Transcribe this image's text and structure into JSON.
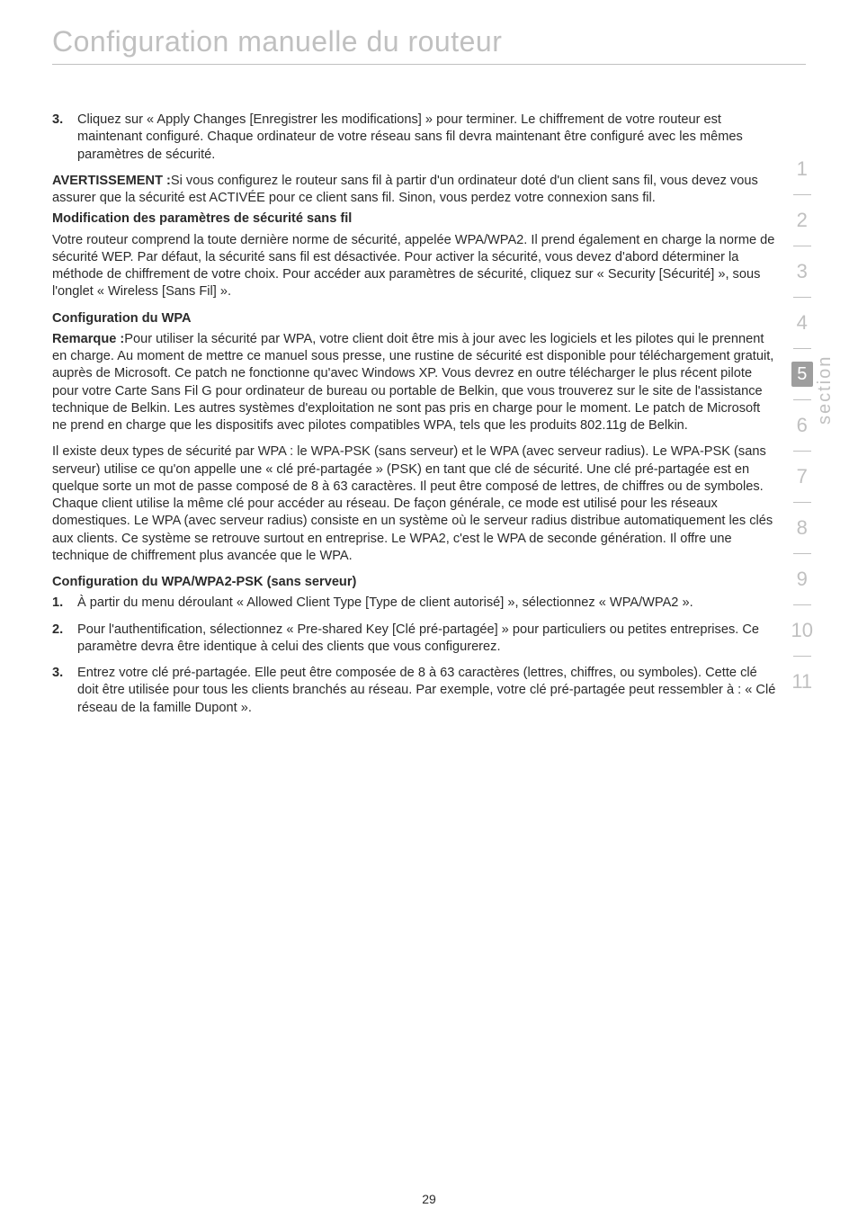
{
  "title": "Configuration manuelle du routeur",
  "sectionLabel": "section",
  "pageNumber": "29",
  "tabs": {
    "items": [
      "1",
      "2",
      "3",
      "4",
      "5",
      "6",
      "7",
      "8",
      "9",
      "10",
      "11"
    ],
    "activeIndex": 4
  },
  "block1": {
    "num": "3.",
    "text": "Cliquez sur « Apply Changes [Enregistrer les modifications] » pour terminer. Le chiffrement de votre routeur est maintenant configuré. Chaque ordinateur de votre réseau sans fil devra maintenant être configuré avec les mêmes paramètres de sécurité."
  },
  "warn": {
    "lead": "AVERTISSEMENT :",
    "body": "Si vous configurez le routeur sans fil à partir d'un ordinateur doté d'un client sans fil, vous devez vous assurer que la sécurité est ACTIVÉE pour ce client sans fil. Sinon, vous perdez votre connexion sans fil."
  },
  "subhead1": "Modification des paramètres de sécurité sans fil",
  "para1": "Votre routeur comprend la toute dernière norme de sécurité, appelée WPA/WPA2. Il prend également en charge la norme de sécurité WEP. Par défaut, la sécurité sans fil est désactivée. Pour activer la sécurité, vous devez d'abord déterminer la méthode de chiffrement de votre choix. Pour accéder aux paramètres de sécurité, cliquez sur « Security [Sécurité] », sous l'onglet « Wireless [Sans Fil] ».",
  "subhead2": "Configuration du WPA",
  "note": {
    "lead": "Remarque :",
    "body": "Pour utiliser la sécurité par WPA, votre client doit être mis à jour avec les logiciels et les pilotes qui le prennent en charge. Au moment de mettre ce manuel sous presse, une rustine de sécurité est disponible pour téléchargement gratuit, auprès de Microsoft. Ce patch ne fonctionne qu'avec Windows XP. Vous devrez en outre télécharger le plus récent pilote pour votre Carte Sans Fil G pour ordinateur de bureau ou portable de Belkin, que vous trouverez sur le site de l'assistance technique de Belkin. Les autres systèmes d'exploitation ne sont pas pris en charge pour le moment. Le patch de Microsoft ne prend en charge que les dispositifs avec pilotes compatibles WPA, tels que les produits 802.11g de Belkin."
  },
  "para2": "Il existe deux types de sécurité par WPA : le WPA-PSK (sans serveur) et le WPA (avec serveur radius). Le WPA-PSK (sans serveur) utilise ce qu'on appelle une « clé pré-partagée » (PSK) en tant que clé de sécurité. Une clé pré-partagée est en quelque sorte un mot de passe composé de 8 à 63 caractères. Il peut être composé de lettres, de chiffres ou de symboles. Chaque client utilise la même clé pour accéder au réseau. De façon générale, ce mode est utilisé pour les réseaux domestiques. Le WPA (avec serveur radius) consiste en un système où le serveur radius distribue automatiquement les clés aux clients. Ce système se retrouve surtout en entreprise. Le WPA2, c'est le WPA de seconde génération. Il offre une technique de chiffrement plus avancée que le WPA.",
  "subhead3": "Configuration du WPA/WPA2-PSK (sans serveur)",
  "step1": {
    "num": "1.",
    "text": "À partir du menu déroulant « Allowed Client Type [Type de client autorisé] », sélectionnez « WPA/WPA2 »."
  },
  "step2": {
    "num": "2.",
    "text": "Pour l'authentification, sélectionnez « Pre-shared Key [Clé pré-partagée] » pour particuliers ou petites entreprises. Ce paramètre devra être identique à celui des clients que vous configurerez."
  },
  "step3": {
    "num": "3.",
    "text": "Entrez votre clé pré-partagée. Elle peut être composée de 8 à 63 caractères (lettres, chiffres, ou symboles). Cette clé doit être utilisée pour tous les clients branchés au réseau. Par exemple, votre clé pré-partagée peut ressembler à : « Clé réseau de la famille Dupont »."
  }
}
